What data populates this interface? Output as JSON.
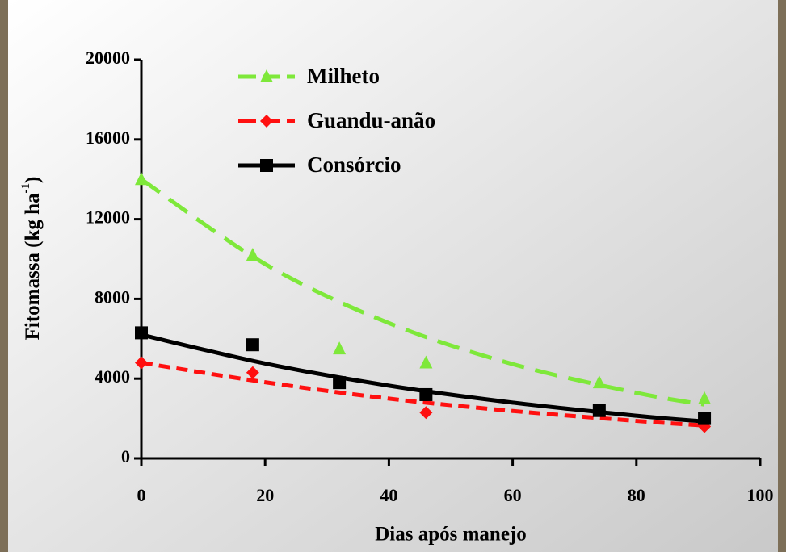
{
  "chart_data": {
    "type": "scatter",
    "x_label": "Dias após manejo",
    "y_label": "Fitomassa (kg ha",
    "y_label_sup": "-1",
    "y_label_end": ")",
    "xlim": [
      0,
      100
    ],
    "xticks": [
      0,
      20,
      40,
      60,
      80,
      100
    ],
    "ylim": [
      0,
      20000
    ],
    "yticks": [
      0,
      4000,
      8000,
      12000,
      16000,
      20000
    ],
    "trend_x": [
      0,
      20,
      40,
      60,
      80,
      91
    ],
    "series": [
      {
        "name": "Milheto",
        "color": "#7ee83a",
        "marker": "triangle",
        "dash": "28 14",
        "x": [
          0,
          18,
          32,
          46,
          74,
          91
        ],
        "values": [
          14000,
          10200,
          5500,
          4800,
          3800,
          3000
        ],
        "trend": [
          14000,
          9750,
          6790,
          4730,
          3290,
          2700
        ]
      },
      {
        "name": "Guandu-anão",
        "color": "#ff1010",
        "marker": "diamond",
        "dash": "14 8",
        "x": [
          0,
          18,
          32,
          46,
          74,
          91
        ],
        "values": [
          4800,
          4300,
          3800,
          2300,
          2400,
          1600
        ],
        "trend": [
          4800,
          3820,
          3000,
          2380,
          1880,
          1650
        ]
      },
      {
        "name": "Consórcio",
        "color": "#000000",
        "marker": "square",
        "dash": "none",
        "x": [
          0,
          18,
          32,
          46,
          74,
          91
        ],
        "values": [
          6300,
          5700,
          3800,
          3200,
          2400,
          2000
        ],
        "trend": [
          6200,
          4760,
          3650,
          2800,
          2140,
          1850
        ]
      }
    ]
  }
}
